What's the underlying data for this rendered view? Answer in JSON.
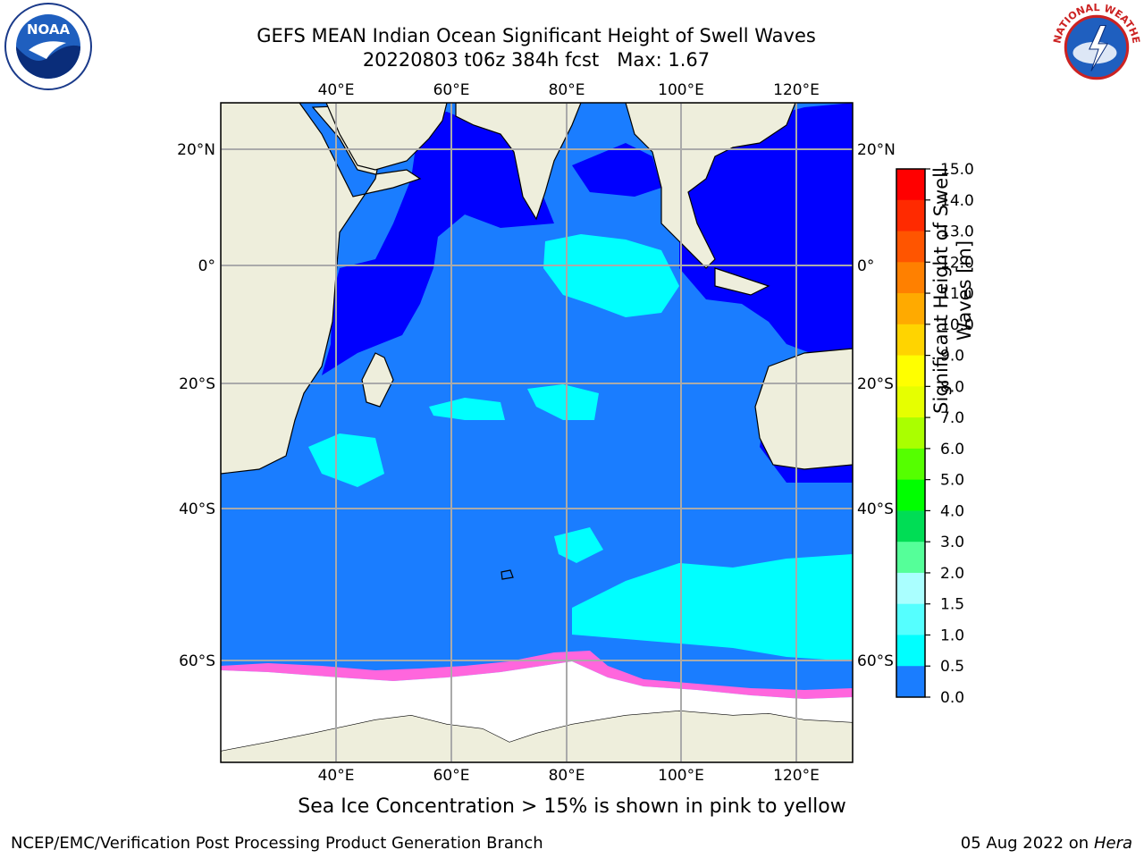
{
  "title": {
    "line1": "GEFS MEAN Indian Ocean Significant Height of Swell Waves",
    "line2": "20220803 t06z 384h fcst   Max: 1.67"
  },
  "map": {
    "lon_labels": [
      "40°E",
      "60°E",
      "80°E",
      "100°E",
      "120°E"
    ],
    "lat_labels": [
      "20°N",
      "0°",
      "20°S",
      "40°S",
      "60°S"
    ],
    "extent": {
      "lon_min": 20,
      "lon_max": 130,
      "lat_min": -72,
      "lat_max": 28
    },
    "colors": {
      "land": "#eeeedc",
      "ocean_low": "#0000ff",
      "ocean_mid": "#1a7dff",
      "ocean_high": "#00ffff",
      "ice": "#ff66dd",
      "grid": "#aaaaaa"
    }
  },
  "colorbar": {
    "label_line1": "Significant Height of Swell",
    "label_line2": "Waves [m]",
    "ticks": [
      "15.0",
      "14.0",
      "13.0",
      "12.0",
      "11.0",
      "10.0",
      "9.0",
      "8.0",
      "7.0",
      "6.0",
      "5.0",
      "4.0",
      "3.0",
      "2.0",
      "1.5",
      "1.0",
      "0.5",
      "0.0"
    ],
    "colors": [
      "#ff0000",
      "#ff2a00",
      "#ff5500",
      "#ff8000",
      "#ffaa00",
      "#ffd400",
      "#ffff00",
      "#e6ff00",
      "#aaff00",
      "#55ff00",
      "#00ff00",
      "#00dd55",
      "#55ff99",
      "#aaffff",
      "#55ffff",
      "#00ffff",
      "#1a7dff",
      "#0000ff"
    ]
  },
  "logos": {
    "noaa_text": "NOAA",
    "nws_text": "NATIONAL WEATHER SERVICE"
  },
  "note": "Sea Ice Concentration > 15% is shown in pink to yellow",
  "footer": {
    "left": "NCEP/EMC/Verification Post Processing Product Generation Branch",
    "right_date": "05 Aug 2022 on",
    "right_host": "Hera"
  }
}
